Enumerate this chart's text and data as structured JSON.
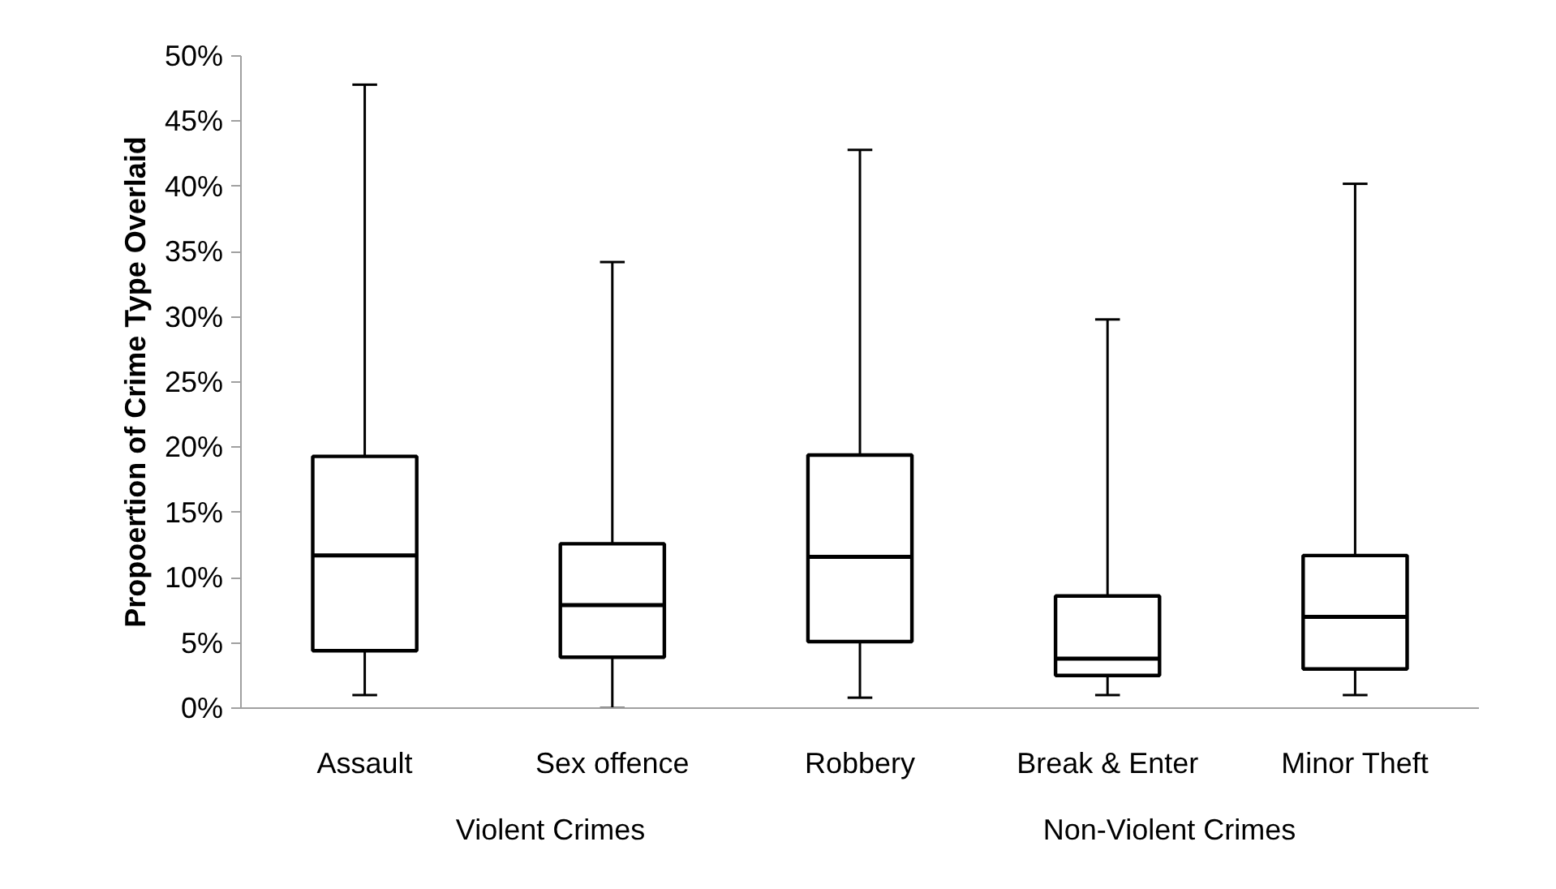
{
  "chart_data": {
    "type": "box",
    "ylabel": "Propoertion of Crime Type Overlaid",
    "categories": [
      "Assault",
      "Sex offence",
      "Robbery",
      "Break & Enter",
      "Minor Theft"
    ],
    "boxes": [
      {
        "low": 1.0,
        "q1": 4.4,
        "median": 11.7,
        "q3": 19.3,
        "high": 47.8
      },
      {
        "low": 0,
        "q1": 3.9,
        "median": 7.9,
        "q3": 12.6,
        "high": 34.2
      },
      {
        "low": 0.8,
        "q1": 5.1,
        "median": 11.6,
        "q3": 19.4,
        "high": 42.8
      },
      {
        "low": 1.0,
        "q1": 2.5,
        "median": 3.8,
        "q3": 8.6,
        "high": 29.8
      },
      {
        "low": 1.0,
        "q1": 3.0,
        "median": 7.0,
        "q3": 11.7,
        "high": 40.2
      }
    ],
    "color": "#000000",
    "ylim": [
      0,
      50
    ],
    "yticks": [
      {
        "value": 0,
        "label": "0%"
      },
      {
        "value": 5,
        "label": "5%"
      },
      {
        "value": 10,
        "label": "10%"
      },
      {
        "value": 15,
        "label": "15%"
      },
      {
        "value": 20,
        "label": "20%"
      },
      {
        "value": 25,
        "label": "25%"
      },
      {
        "value": 30,
        "label": "30%"
      },
      {
        "value": 35,
        "label": "35%"
      },
      {
        "value": 40,
        "label": "40%"
      },
      {
        "value": 45,
        "label": "45%"
      },
      {
        "value": 50,
        "label": "50%"
      }
    ],
    "annotations": [
      "Violent Crimes",
      "Non-Violent Crimes"
    ],
    "grid": false
  }
}
